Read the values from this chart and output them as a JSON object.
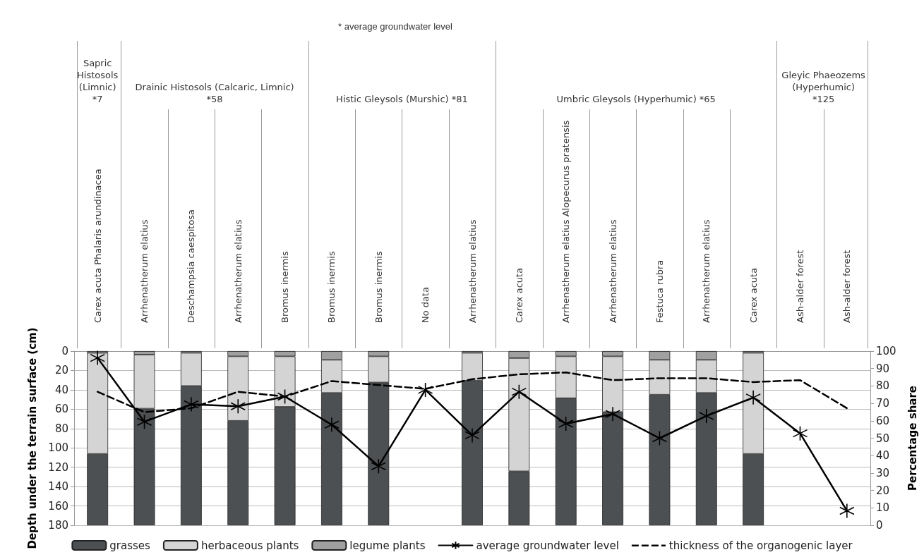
{
  "chart_data": {
    "type": "bar",
    "stacked": true,
    "ylabel": "Depth under the terrain surface (cm)",
    "y2label": "Percentage share",
    "annotations": [
      "* average groundwater level",
      "Sapric\nHistosols\n(Limnic)\n*7",
      "Drainic Histosols (Calcaric, Limnic)\n*58",
      "Histic Gleysols (Murshic) *81",
      "Umbric Gleysols (Hyperhumic)  *65",
      "Gleyic Phaeozems\n(Hyperhumic)\n*125"
    ],
    "categories": [
      "Carex acuta Phalaris arundinacea",
      "Arrhenatherum elatius",
      "Deschampsia caespitosa",
      "Arrhenatherum elatius",
      "Bromus inermis",
      "Bromus inermis",
      "Bromus inermis",
      "No data",
      "Arrhenatherum elatius",
      "Carex acuta",
      "Arrhenatherum elatius Alopecurus pratensis",
      "Arrhenatherum elatius",
      "Festuca rubra",
      "Arrhenatherum elatius",
      "Carex acuta",
      "Ash-alder forest",
      "Ash-alder forest"
    ],
    "series": [
      {
        "name": "grasses",
        "axis": "y2",
        "color": "#4d5052",
        "values": [
          41,
          67,
          80,
          60,
          68,
          76,
          82,
          null,
          83,
          31,
          73,
          65,
          75,
          76,
          41,
          null,
          null
        ]
      },
      {
        "name": "herbaceous plants",
        "axis": "y2",
        "color": "#d4d4d4",
        "values": [
          58,
          31,
          19,
          37,
          29,
          19,
          15,
          null,
          16,
          65,
          24,
          32,
          20,
          19,
          58,
          null,
          null
        ]
      },
      {
        "name": "legume plants",
        "axis": "y2",
        "color": "#a0a0a0",
        "values": [
          1,
          2,
          1,
          3,
          3,
          5,
          3,
          null,
          1,
          4,
          3,
          3,
          5,
          5,
          1,
          null,
          null
        ]
      },
      {
        "name": "average groundwater level",
        "type": "line",
        "axis": "y",
        "color": "#000000",
        "marker": "star",
        "line_style": "solid",
        "values": [
          7,
          73,
          55,
          57,
          47,
          76,
          119,
          40,
          87,
          42,
          75,
          65,
          90,
          67,
          48,
          85,
          165
        ]
      },
      {
        "name": "thickness of the organogenic layer",
        "type": "line",
        "axis": "y",
        "color": "#000000",
        "marker": "none",
        "line_style": "dashed",
        "values": [
          42,
          63,
          59,
          42,
          47,
          31,
          35,
          39,
          29,
          24,
          22,
          30,
          28,
          28,
          32,
          30,
          59
        ]
      }
    ],
    "ylim": [
      180,
      0
    ],
    "yticks": [
      0,
      20,
      40,
      60,
      80,
      100,
      120,
      140,
      160,
      180
    ],
    "y2lim": [
      0,
      100
    ],
    "y2ticks": [
      0,
      10,
      20,
      30,
      40,
      50,
      60,
      70,
      80,
      90,
      100
    ],
    "grid": "y",
    "legend": "bottom"
  }
}
